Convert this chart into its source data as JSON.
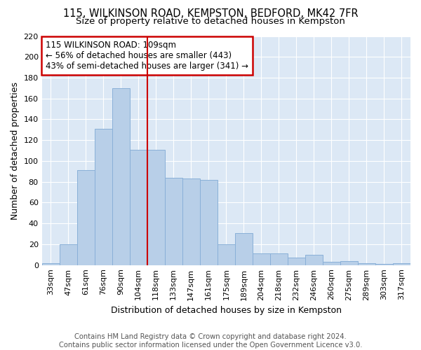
{
  "title": "115, WILKINSON ROAD, KEMPSTON, BEDFORD, MK42 7FR",
  "subtitle": "Size of property relative to detached houses in Kempston",
  "xlabel": "Distribution of detached houses by size in Kempston",
  "ylabel": "Number of detached properties",
  "categories": [
    "33sqm",
    "47sqm",
    "61sqm",
    "76sqm",
    "90sqm",
    "104sqm",
    "118sqm",
    "133sqm",
    "147sqm",
    "161sqm",
    "175sqm",
    "189sqm",
    "204sqm",
    "218sqm",
    "232sqm",
    "246sqm",
    "260sqm",
    "275sqm",
    "289sqm",
    "303sqm",
    "317sqm"
  ],
  "values": [
    2,
    20,
    91,
    131,
    170,
    111,
    111,
    84,
    83,
    82,
    20,
    31,
    11,
    11,
    7,
    10,
    3,
    4,
    2,
    1,
    2
  ],
  "bar_color": "#b8cfe8",
  "bar_edge_color": "#8ab0d8",
  "vline_x": 5.5,
  "vline_color": "#cc0000",
  "annotation_text": "115 WILKINSON ROAD: 109sqm\n← 56% of detached houses are smaller (443)\n43% of semi-detached houses are larger (341) →",
  "annotation_box_color": "#ffffff",
  "annotation_box_edge": "#cc0000",
  "footer_text": "Contains HM Land Registry data © Crown copyright and database right 2024.\nContains public sector information licensed under the Open Government Licence v3.0.",
  "ylim": [
    0,
    220
  ],
  "yticks": [
    0,
    20,
    40,
    60,
    80,
    100,
    120,
    140,
    160,
    180,
    200,
    220
  ],
  "background_color": "#dce8f5",
  "fig_background": "#ffffff",
  "grid_color": "#ffffff",
  "title_fontsize": 10.5,
  "subtitle_fontsize": 9.5,
  "axis_fontsize": 9,
  "tick_fontsize": 8,
  "footer_fontsize": 7.2,
  "annot_fontsize": 8.5
}
